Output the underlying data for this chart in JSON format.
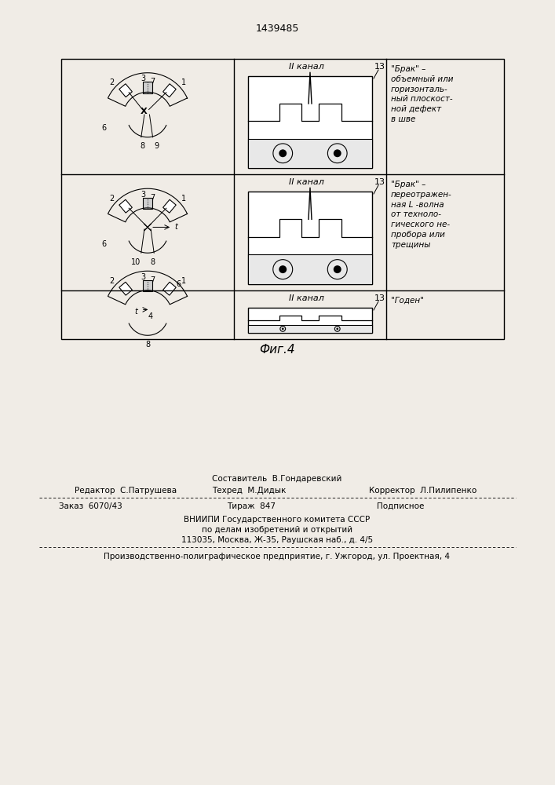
{
  "patent_number": "1439485",
  "fig_caption": "Фиг.4",
  "bg_color": "#ffffff",
  "rows": [
    {
      "oscilloscope_label": "II канал",
      "osc_number": "13",
      "right_text": "\"Годен\""
    },
    {
      "oscilloscope_label": "II канал",
      "osc_number": "13",
      "right_text": "\"Брак\" –\nпереотражен-\nная L -волна\nот техноло-\nгического не-\nпробора или\nтрещины"
    },
    {
      "oscilloscope_label": "II канал",
      "osc_number": "13",
      "right_text": "\"Брак\" –\nобъемный или\nгоризонталь-\nный плоскост-\nной дефект\nв шве"
    }
  ],
  "bottom_text": {
    "sestavitel": "Составитель  В.Гондаревский",
    "redaktor": "Редактор  С.Патрушева",
    "tehred": "Техред  М.Дидык",
    "korrektor": "Корректор  Л.Пилипенко",
    "zakaz": "Заказ  6070/43",
    "tirazh": "Тираж  847",
    "podpisnoe": "Подписное",
    "vnipi_line1": "ВНИИПИ Государственного комитета СССР",
    "vnipi_line2": "по делам изобретений и открытий",
    "vnipi_line3": "113035, Москва, Ж-35, Раушская наб., д. 4/5",
    "factory": "Производственно-полиграфическое предприятие, г. Ужгород, ул. Проектная, 4"
  }
}
